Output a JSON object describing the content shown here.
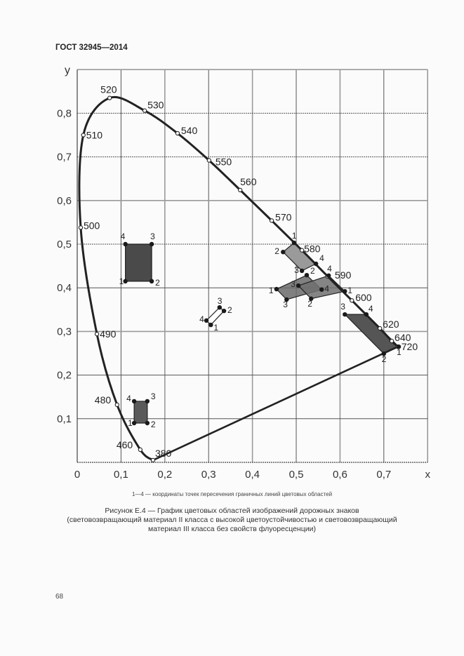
{
  "header": {
    "standard": "ГОСТ 32945—2014"
  },
  "footer": {
    "page_number": "68"
  },
  "figure": {
    "legend_note": "1—4 — координаты точек пересечения граничных линий цветовых областей",
    "caption_line1": "Рисунок Е.4 — График цветовых областей изображений дорожных знаков",
    "caption_line2": "(световозвращающий материал II класса с высокой цветоустойчивостью и световозвращающий",
    "caption_line3": "материал III класса без свойств флуоресценции)"
  },
  "chart_data": {
    "type": "scatter",
    "title": "График цветовых областей изображений дорожных знаков",
    "xlabel": "x",
    "ylabel": "y",
    "xlim": [
      0,
      0.8
    ],
    "ylim": [
      0,
      0.9
    ],
    "grid": true,
    "x_ticks": [
      "0",
      "0,1",
      "0,2",
      "0,3",
      "0,4",
      "0,5",
      "0,6",
      "0,7"
    ],
    "y_ticks": [
      "0,1",
      "0,2",
      "0,3",
      "0,4",
      "0,5",
      "0,6",
      "0,7",
      "0,8"
    ],
    "spectral_locus": [
      {
        "nm": "380",
        "x": 0.173,
        "y": 0.005
      },
      {
        "nm": "460",
        "x": 0.144,
        "y": 0.029
      },
      {
        "nm": "480",
        "x": 0.091,
        "y": 0.132
      },
      {
        "nm": "490",
        "x": 0.045,
        "y": 0.294
      },
      {
        "nm": "500",
        "x": 0.008,
        "y": 0.538
      },
      {
        "nm": "510",
        "x": 0.014,
        "y": 0.75
      },
      {
        "nm": "520",
        "x": 0.074,
        "y": 0.835
      },
      {
        "nm": "530",
        "x": 0.154,
        "y": 0.806
      },
      {
        "nm": "540",
        "x": 0.229,
        "y": 0.754
      },
      {
        "nm": "550",
        "x": 0.301,
        "y": 0.692
      },
      {
        "nm": "560",
        "x": 0.372,
        "y": 0.624
      },
      {
        "nm": "570",
        "x": 0.444,
        "y": 0.554
      },
      {
        "nm": "580",
        "x": 0.513,
        "y": 0.486
      },
      {
        "nm": "590",
        "x": 0.572,
        "y": 0.426
      },
      {
        "nm": "600",
        "x": 0.627,
        "y": 0.371
      },
      {
        "nm": "620",
        "x": 0.691,
        "y": 0.307
      },
      {
        "nm": "640",
        "x": 0.718,
        "y": 0.278
      },
      {
        "nm": "720",
        "x": 0.732,
        "y": 0.265
      }
    ],
    "regions": [
      {
        "name": "green",
        "fill": "#4a4a4a",
        "points": [
          {
            "label": "1",
            "x": 0.11,
            "y": 0.415
          },
          {
            "label": "2",
            "x": 0.17,
            "y": 0.415
          },
          {
            "label": "3",
            "x": 0.17,
            "y": 0.5
          },
          {
            "label": "4",
            "x": 0.11,
            "y": 0.5
          }
        ]
      },
      {
        "name": "blue",
        "fill": "#5a5a5a",
        "points": [
          {
            "label": "1",
            "x": 0.13,
            "y": 0.09
          },
          {
            "label": "2",
            "x": 0.16,
            "y": 0.09
          },
          {
            "label": "3",
            "x": 0.16,
            "y": 0.14
          },
          {
            "label": "4",
            "x": 0.13,
            "y": 0.14
          }
        ]
      },
      {
        "name": "white",
        "fill": "#ffffff",
        "points": [
          {
            "label": "1",
            "x": 0.305,
            "y": 0.315
          },
          {
            "label": "2",
            "x": 0.335,
            "y": 0.347
          },
          {
            "label": "3",
            "x": 0.325,
            "y": 0.355
          },
          {
            "label": "4",
            "x": 0.295,
            "y": 0.325
          }
        ]
      },
      {
        "name": "yellow",
        "fill": "#9a9a9a",
        "points": [
          {
            "label": "1",
            "x": 0.495,
            "y": 0.503
          },
          {
            "label": "2",
            "x": 0.47,
            "y": 0.482
          },
          {
            "label": "3",
            "x": 0.513,
            "y": 0.439
          },
          {
            "label": "4",
            "x": 0.545,
            "y": 0.455
          }
        ]
      },
      {
        "name": "orange-a",
        "fill": "#6a6a6a",
        "points": [
          {
            "label": "1",
            "x": 0.455,
            "y": 0.397
          },
          {
            "label": "2",
            "x": 0.524,
            "y": 0.429
          },
          {
            "label": "4",
            "x": 0.558,
            "y": 0.396
          },
          {
            "label": "3",
            "x": 0.478,
            "y": 0.373
          }
        ]
      },
      {
        "name": "orange-b",
        "fill": "#707070",
        "points": [
          {
            "label": "3",
            "x": 0.505,
            "y": 0.405
          },
          {
            "label": "4",
            "x": 0.574,
            "y": 0.428
          },
          {
            "label": "1",
            "x": 0.611,
            "y": 0.392
          },
          {
            "label": "2",
            "x": 0.534,
            "y": 0.375
          }
        ]
      },
      {
        "name": "red",
        "fill": "#555555",
        "points": [
          {
            "label": "1",
            "x": 0.734,
            "y": 0.265
          },
          {
            "label": "2",
            "x": 0.7,
            "y": 0.249
          },
          {
            "label": "3",
            "x": 0.611,
            "y": 0.339
          },
          {
            "label": "4",
            "x": 0.66,
            "y": 0.339
          }
        ]
      }
    ],
    "label_offsets": {
      "green": [
        [
          -9,
          4
        ],
        [
          5,
          6
        ],
        [
          -2,
          -7
        ],
        [
          -7,
          -7
        ]
      ],
      "blue": [
        [
          -9,
          4
        ],
        [
          5,
          6
        ],
        [
          5,
          -3
        ],
        [
          -11,
          0
        ]
      ],
      "white": [
        [
          4,
          8
        ],
        [
          5,
          3
        ],
        [
          -3,
          -5
        ],
        [
          -10,
          2
        ]
      ],
      "yellow": [
        [
          -3,
          -6
        ],
        [
          -12,
          3
        ],
        [
          -11,
          3
        ],
        [
          5,
          -4
        ]
      ],
      "orange-a": [
        [
          -11,
          6
        ],
        [
          5,
          -2
        ],
        [
          4,
          3
        ],
        [
          -5,
          11
        ]
      ],
      "orange-b": [
        [
          -11,
          2
        ],
        [
          -2,
          -6
        ],
        [
          4,
          3
        ],
        [
          -5,
          11
        ]
      ],
      "red": [
        [
          -3,
          12
        ],
        [
          -3,
          12
        ],
        [
          -6,
          -7
        ],
        [
          3,
          -4
        ]
      ]
    },
    "locus_label_offsets": {
      "380": [
        3,
        -5
      ],
      "460": [
        -34,
        -2
      ],
      "480": [
        -32,
        -2
      ],
      "490": [
        4,
        5
      ],
      "500": [
        4,
        2
      ],
      "510": [
        4,
        5
      ],
      "520": [
        -13,
        -7
      ],
      "530": [
        4,
        -3
      ],
      "540": [
        5,
        1
      ],
      "550": [
        9,
        7
      ],
      "560": [
        0,
        -7
      ],
      "570": [
        5,
        0
      ],
      "580": [
        3,
        3
      ],
      "590": [
        10,
        3
      ],
      "600": [
        5,
        1
      ],
      "620": [
        4,
        -1
      ],
      "640": [
        4,
        0
      ],
      "720": [
        5,
        5
      ]
    }
  }
}
